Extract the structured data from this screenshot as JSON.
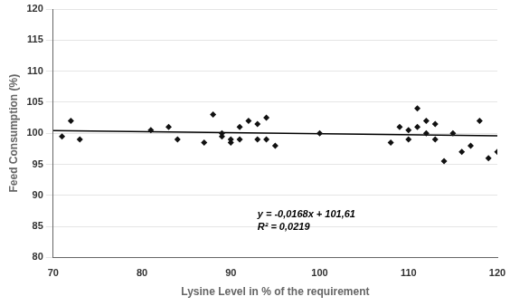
{
  "chart_data": {
    "type": "scatter",
    "x_label": "Lysine Level in % of the requirement",
    "y_label": "Feed Consumption (%)",
    "series": [
      {
        "type": "scatter",
        "color": "#111111",
        "marker": "diamond",
        "x": [
          71,
          72,
          73,
          81,
          83,
          84,
          87,
          88,
          89,
          89,
          90,
          90,
          91,
          91,
          92,
          93,
          93,
          94,
          94,
          95,
          100,
          108,
          109,
          110,
          110,
          111,
          111,
          112,
          112,
          113,
          113,
          114,
          115,
          116,
          117,
          118,
          119,
          120
        ],
        "values": [
          99.5,
          102,
          99,
          100.5,
          101,
          99,
          98.5,
          103,
          100,
          99.5,
          99,
          98.5,
          101,
          99,
          102,
          101.5,
          99,
          102.5,
          99,
          98,
          100,
          98.5,
          101,
          100.5,
          99,
          104,
          101,
          102,
          100,
          101.5,
          99,
          95.5,
          100,
          97,
          98,
          102,
          96,
          97
        ]
      },
      {
        "type": "line",
        "color": "#000000",
        "line_style": "solid",
        "x": [
          70,
          120
        ],
        "values": [
          100.434,
          99.594
        ]
      }
    ],
    "annotations": [
      {
        "text": "y = -0,0168x + 101,61",
        "x": 93,
        "y": 86.5
      },
      {
        "text": "R² = 0,0219",
        "x": 93,
        "y": 84.5
      }
    ],
    "xlim": [
      70,
      120
    ],
    "ylim": [
      80,
      120
    ],
    "xticks": [
      70,
      80,
      90,
      100,
      110,
      120
    ],
    "yticks": [
      80,
      85,
      90,
      95,
      100,
      105,
      110,
      115,
      120
    ],
    "grid": "y"
  }
}
